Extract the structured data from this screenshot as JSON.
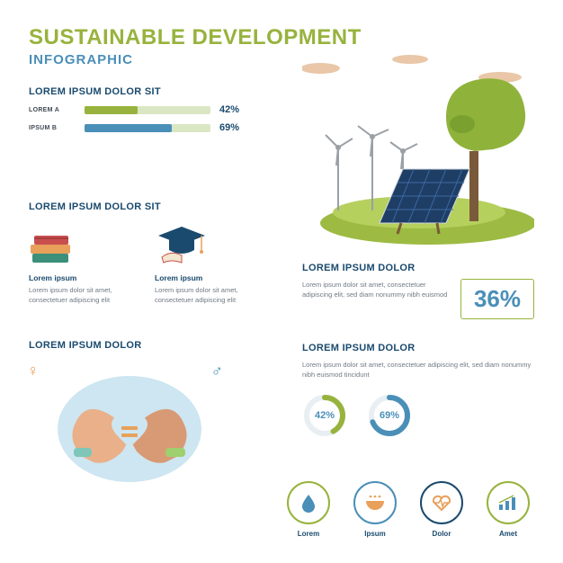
{
  "colors": {
    "green": "#97b33d",
    "blue_dark": "#1a4a6e",
    "blue_mid": "#4a8fb8",
    "blue_light": "#cde6f1",
    "orange": "#e8a05a",
    "gray_text": "#6f7a84",
    "track": "#dbe6c5"
  },
  "header": {
    "title": "SUSTAINABLE DEVELOPMENT",
    "subtitle": "INFOGRAPHIC"
  },
  "bars_section": {
    "heading": "LOREM IPSUM DOLOR SIT",
    "items": [
      {
        "label": "LOREM A",
        "value": 42,
        "fill": "#97b33d"
      },
      {
        "label": "IPSUM B",
        "value": 69,
        "fill": "#4a8fb8"
      }
    ]
  },
  "edu_section": {
    "heading": "LOREM IPSUM DOLOR SIT",
    "items": [
      {
        "icon": "books",
        "title": "Lorem ipsum",
        "body": "Lorem ipsum dolor sit amet, consectetuer adipiscing elit"
      },
      {
        "icon": "gradcap",
        "title": "Lorem ipsum",
        "body": "Lorem ipsum dolor sit amet, consectetuer adipiscing elit"
      }
    ]
  },
  "equality_section": {
    "heading": "LOREM IPSUM DOLOR",
    "female_color": "#e8a05a",
    "male_color": "#4a8fb8"
  },
  "right_top": {
    "heading": "LOREM IPSUM DOLOR",
    "body": "Lorem ipsum dolor sit amet, consectetuer adipiscing elit, sed diam nonummy nibh euismod",
    "big_pct": "36%",
    "big_pct_color": "#4a8fb8",
    "big_pct_border": "#97b33d"
  },
  "right_mid": {
    "heading": "LOREM IPSUM DOLOR",
    "body": "Lorem ipsum dolor sit amet, consectetuer adipiscing elit, sed diam nonummy nibh euismod tincidunt",
    "donuts": [
      {
        "value": 42,
        "ring_color": "#97b33d",
        "text_color": "#4a8fb8"
      },
      {
        "value": 69,
        "ring_color": "#4a8fb8",
        "text_color": "#4a8fb8"
      }
    ]
  },
  "icon_row": [
    {
      "name": "water-drop-icon",
      "label": "Lorem",
      "fg": "#4a8fb8",
      "ring": "#97b33d"
    },
    {
      "name": "bowl-icon",
      "label": "Ipsum",
      "fg": "#e8a05a",
      "ring": "#4a8fb8"
    },
    {
      "name": "heart-pulse-icon",
      "label": "Dolor",
      "fg": "#e8a05a",
      "ring": "#1a4a6e"
    },
    {
      "name": "bar-growth-icon",
      "label": "Amet",
      "fg": "#4a8fb8",
      "ring": "#97b33d"
    }
  ]
}
